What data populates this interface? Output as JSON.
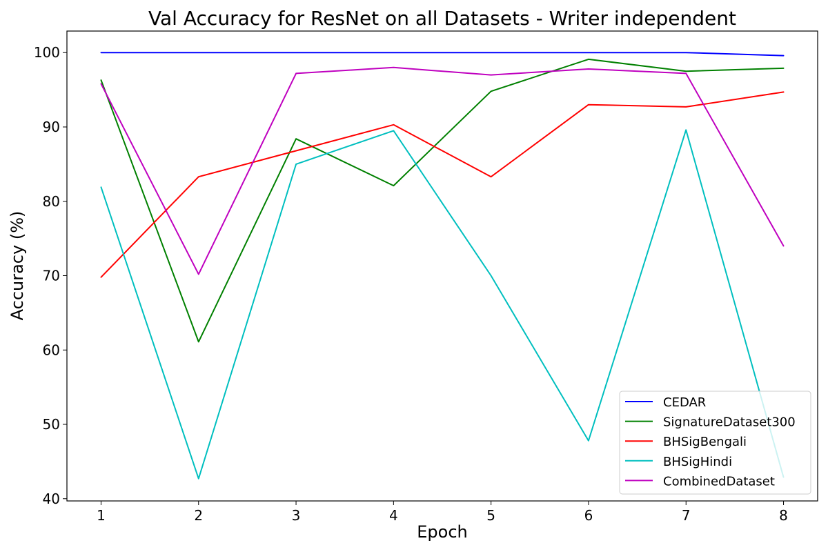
{
  "chart_data": {
    "type": "line",
    "title": "Val Accuracy for ResNet on all Datasets - Writer independent",
    "xlabel": "Epoch",
    "ylabel": "Accuracy (%)",
    "x": [
      1,
      2,
      3,
      4,
      5,
      6,
      7,
      8
    ],
    "xticks": [
      "1",
      "2",
      "3",
      "4",
      "5",
      "6",
      "7",
      "8"
    ],
    "yticks": [
      "40",
      "50",
      "60",
      "70",
      "80",
      "90",
      "100"
    ],
    "xlim": [
      0.65,
      8.35
    ],
    "ylim": [
      39.7,
      102.9
    ],
    "grid": false,
    "legend_position": "lower-right",
    "series": [
      {
        "name": "CEDAR",
        "color": "#0000ff",
        "values": [
          100.0,
          100.0,
          100.0,
          100.0,
          100.0,
          100.0,
          100.0,
          99.6
        ]
      },
      {
        "name": "SignatureDataset300",
        "color": "#008000",
        "values": [
          96.3,
          61.1,
          88.4,
          82.1,
          94.8,
          99.1,
          97.5,
          97.9
        ]
      },
      {
        "name": "BHSigBengali",
        "color": "#ff0000",
        "values": [
          69.8,
          83.3,
          86.8,
          90.3,
          83.3,
          93.0,
          92.7,
          94.7
        ]
      },
      {
        "name": "BHSigHindi",
        "color": "#00bfbf",
        "values": [
          81.9,
          42.7,
          85.0,
          89.5,
          70.0,
          47.8,
          89.6,
          42.9
        ]
      },
      {
        "name": "CombinedDataset",
        "color": "#bf00bf",
        "values": [
          95.8,
          70.2,
          97.2,
          98.0,
          97.0,
          97.8,
          97.2,
          74.0
        ]
      }
    ]
  }
}
